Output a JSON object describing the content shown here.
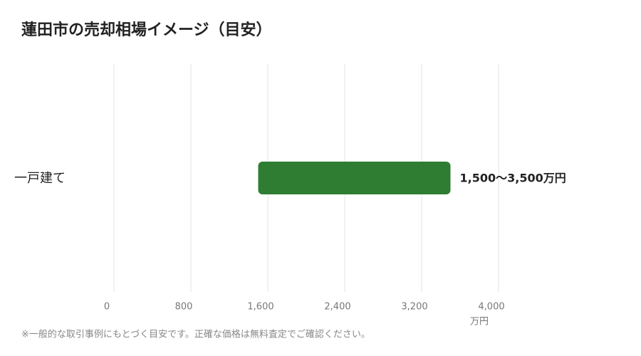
{
  "chart_data": {
    "type": "range-bar",
    "title": "蓮田市の売却相場イメージ（目安）",
    "categories": [
      "一戸建て"
    ],
    "values": [
      [
        1500,
        3500
      ]
    ],
    "value_labels": [
      "1,500〜3,500万円"
    ],
    "color": "#2e7d32",
    "xlim": [
      0,
      4000
    ],
    "xticks": [
      0,
      800,
      {
        "value": 1600,
        "label": "1,600"
      },
      {
        "value": 2400,
        "label": "2,400"
      },
      {
        "value": 3200,
        "label": "3,200"
      },
      {
        "value": 4000,
        "label": "4,000"
      }
    ],
    "x_label": "万円",
    "grid": true,
    "note": "※一般的な取引事例にもとづく目安です。正確な価格は無料査定でご確認ください。"
  }
}
